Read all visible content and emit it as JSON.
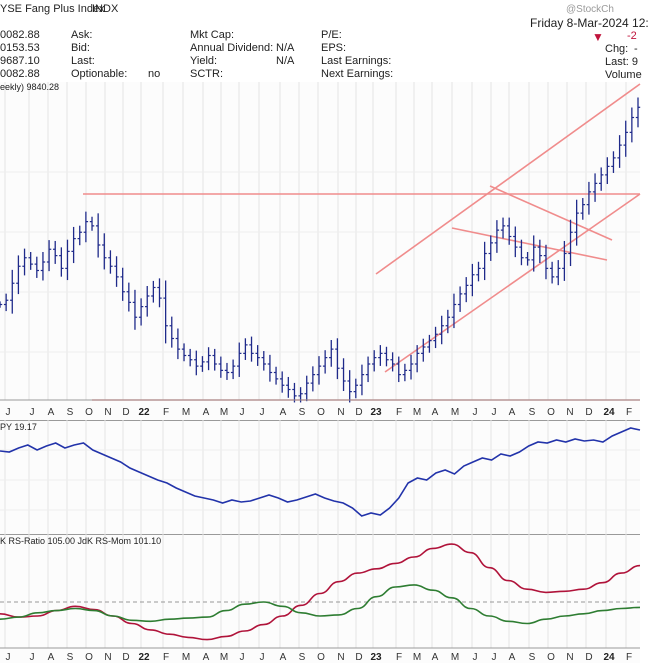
{
  "header": {
    "title": "YSE Fang Plus Index",
    "exchange": "INDX",
    "brand": "@StockCh",
    "date": "Friday  8-Mar-2024  12:",
    "price_rows": [
      "0082.88",
      "0153.53",
      "9687.10",
      "0082.88"
    ],
    "fields": [
      {
        "label": "Ask:",
        "value": ""
      },
      {
        "label": "Bid:",
        "value": ""
      },
      {
        "label": "Last:",
        "value": ""
      },
      {
        "label": "Optionable:",
        "value": "no"
      }
    ],
    "fields2": [
      {
        "label": "Mkt Cap:",
        "value": ""
      },
      {
        "label": "Annual Dividend:",
        "value": "N/A"
      },
      {
        "label": "Yield:",
        "value": "N/A"
      },
      {
        "label": "SCTR:",
        "value": ""
      }
    ],
    "fields3": [
      {
        "label": "P/E:"
      },
      {
        "label": "EPS:"
      },
      {
        "label": "Last Earnings:"
      },
      {
        "label": "Next Earnings:"
      }
    ],
    "right": {
      "change_val": "-2",
      "chg_label": "Chg:",
      "chg_val": "-",
      "last_label": "Last: 9",
      "volume_label": "Volume"
    }
  },
  "colors": {
    "price_bars": "#1f2a8a",
    "rel_line": "#2233aa",
    "rs_ratio": "#b0133a",
    "rs_mom": "#2e7d32",
    "trendlines": "#f08c8c",
    "down_arrow": "#c0143c"
  },
  "chart_data": [
    {
      "type": "ohlc",
      "panel": "price",
      "legend": "eekly) 9840.28",
      "x_ticks": [
        "J",
        "J",
        "A",
        "S",
        "O",
        "N",
        "D",
        "22",
        "F",
        "M",
        "A",
        "M",
        "J",
        "J",
        "A",
        "S",
        "O",
        "N",
        "D",
        "23",
        "F",
        "M",
        "A",
        "M",
        "J",
        "J",
        "A",
        "S",
        "O",
        "N",
        "D",
        "24",
        "F"
      ],
      "closes": [
        5200,
        5300,
        5700,
        6100,
        6300,
        6150,
        6000,
        6200,
        6500,
        6350,
        6050,
        6450,
        6750,
        6900,
        7150,
        7050,
        6600,
        6300,
        6100,
        5850,
        5500,
        5250,
        4900,
        5150,
        5400,
        5600,
        5350,
        4700,
        4400,
        4150,
        4000,
        3900,
        3750,
        3850,
        4000,
        3800,
        3650,
        3600,
        3750,
        4050,
        4250,
        4050,
        3950,
        3800,
        3600,
        3450,
        3300,
        3200,
        3050,
        3100,
        3350,
        3550,
        3750,
        3950,
        4150,
        3700,
        3400,
        3150,
        3300,
        3550,
        3800,
        3950,
        4050,
        3900,
        3800,
        3550,
        3650,
        3800,
        4050,
        4200,
        4350,
        4500,
        4700,
        4900,
        5200,
        5450,
        5650,
        5900,
        6050,
        6400,
        6650,
        6950,
        7050,
        6800,
        6550,
        6300,
        6250,
        6550,
        6350,
        6050,
        5850,
        6050,
        6400,
        6900,
        7350,
        7550,
        7850,
        8050,
        8250,
        8450,
        8650,
        8950,
        9250,
        9600,
        9840
      ]
    },
    {
      "type": "line",
      "panel": "relative",
      "legend": "PY 19.17",
      "values": [
        0.77,
        0.76,
        0.8,
        0.83,
        0.78,
        0.82,
        0.85,
        0.8,
        0.83,
        0.85,
        0.78,
        0.74,
        0.7,
        0.66,
        0.6,
        0.56,
        0.52,
        0.48,
        0.45,
        0.4,
        0.36,
        0.32,
        0.3,
        0.28,
        0.25,
        0.28,
        0.26,
        0.27,
        0.3,
        0.33,
        0.3,
        0.26,
        0.28,
        0.31,
        0.34,
        0.3,
        0.27,
        0.25,
        0.2,
        0.12,
        0.15,
        0.13,
        0.2,
        0.3,
        0.45,
        0.5,
        0.48,
        0.55,
        0.58,
        0.54,
        0.62,
        0.66,
        0.7,
        0.68,
        0.74,
        0.72,
        0.76,
        0.82,
        0.86,
        0.85,
        0.88,
        0.86,
        0.89,
        0.87,
        0.88,
        0.86,
        0.92,
        0.96,
        1.0,
        0.98
      ]
    },
    {
      "type": "line",
      "panel": "rrg",
      "legend": "K RS-Ratio 105.00  JdK RS-Mom 101.10",
      "series": [
        {
          "name": "JdK RS-Ratio",
          "values": [
            100.5,
            100.2,
            100.3,
            100.8,
            101.2,
            100.9,
            100.3,
            99.6,
            99.0,
            98.6,
            98.3,
            98.1,
            98.4,
            98.9,
            99.5,
            100.3,
            101.3,
            102.4,
            103.5,
            104.3,
            104.7,
            105.2,
            105.8,
            106.6,
            107.0,
            106.2,
            104.8,
            103.6,
            102.8,
            102.5,
            102.6,
            102.8,
            103.4,
            104.3,
            105.0
          ]
        },
        {
          "name": "JdK RS-Mom",
          "values": [
            100.0,
            100.2,
            100.6,
            100.8,
            101.0,
            100.8,
            100.3,
            99.9,
            99.8,
            100.0,
            100.1,
            100.2,
            100.8,
            101.4,
            101.6,
            101.2,
            100.6,
            100.3,
            100.4,
            101.0,
            102.1,
            103.0,
            103.2,
            102.7,
            102.0,
            101.0,
            100.3,
            99.8,
            99.6,
            100.0,
            100.3,
            100.5,
            100.8,
            101.0,
            101.1
          ]
        }
      ]
    }
  ]
}
